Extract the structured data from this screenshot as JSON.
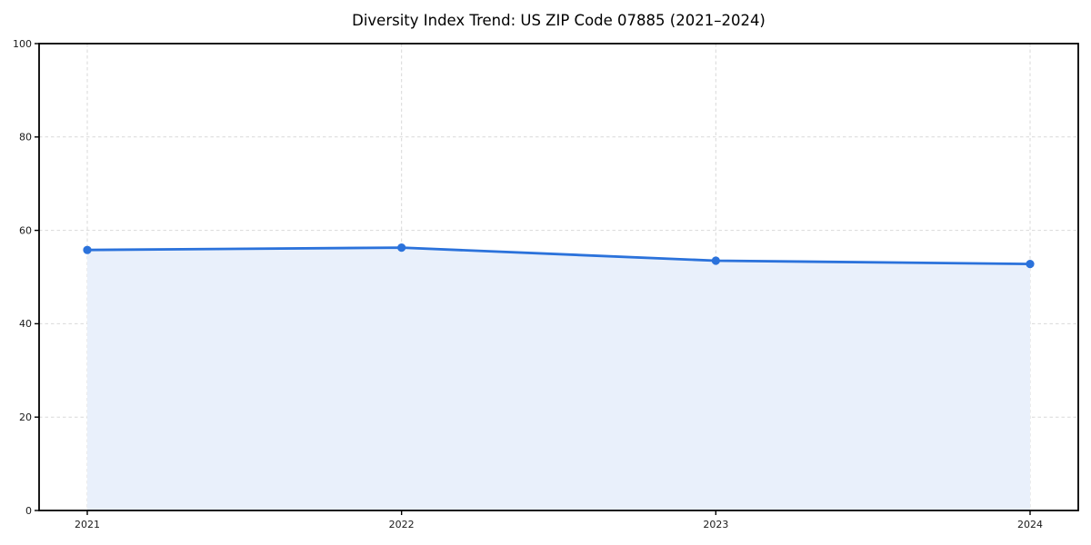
{
  "page": {
    "background": "#ffffff"
  },
  "chart_data": {
    "type": "area",
    "title": "Diversity Index Trend: US ZIP Code 07885 (2021–2024)",
    "categories": [
      "2021",
      "2022",
      "2023",
      "2024"
    ],
    "series": [
      {
        "name": "Diversity Index",
        "values": [
          55.8,
          56.3,
          53.5,
          52.8
        ]
      }
    ],
    "xlabel": "",
    "ylabel": "",
    "ylim": [
      0,
      100
    ],
    "yticks": [
      0,
      20,
      40,
      60,
      80,
      100
    ],
    "grid": true,
    "grid_style": "dashed",
    "legend": false,
    "marker": "circle",
    "colors": {
      "line": "#2b72db",
      "marker": "#2b72db",
      "fill": "#e9f0fb",
      "grid": "#d9d9d9",
      "spine": "#000000",
      "title": "#000000",
      "tick_label": "#1a1a1a"
    }
  }
}
